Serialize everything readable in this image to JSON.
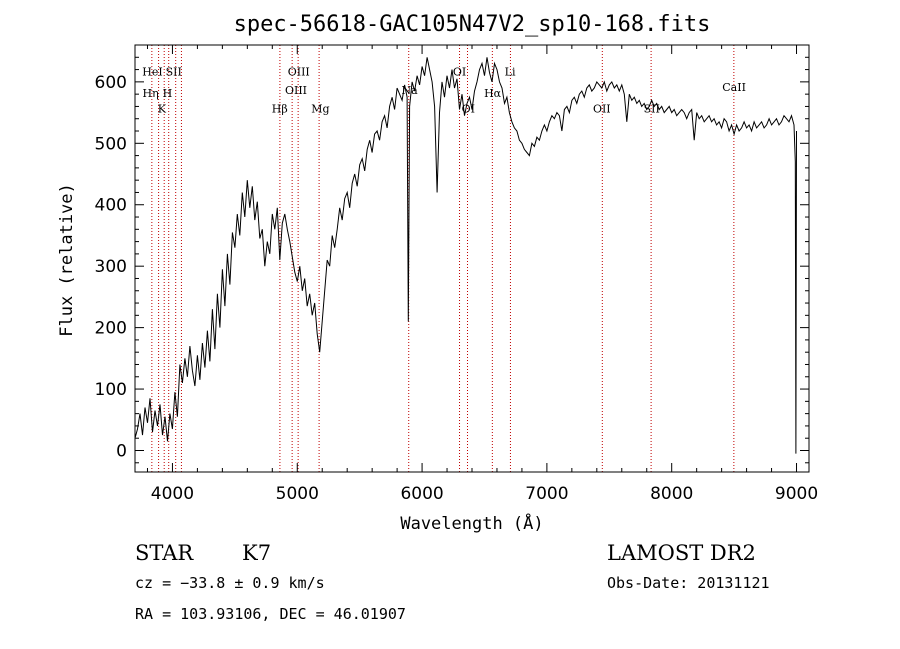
{
  "chart_data": {
    "type": "line",
    "title": "spec-56618-GAC105N47V2_sp10-168.fits",
    "xlabel": "Wavelength (Å)",
    "ylabel": "Flux (relative)",
    "xlim": [
      3700,
      9100
    ],
    "ylim": [
      -35,
      660
    ],
    "x_ticks": [
      4000,
      5000,
      6000,
      7000,
      8000,
      9000
    ],
    "y_ticks": [
      0,
      100,
      200,
      300,
      400,
      500,
      600
    ],
    "grid": false,
    "series": [
      {
        "points": [
          [
            3700,
            20
          ],
          [
            3720,
            35
          ],
          [
            3740,
            60
          ],
          [
            3760,
            25
          ],
          [
            3780,
            70
          ],
          [
            3800,
            45
          ],
          [
            3820,
            85
          ],
          [
            3840,
            30
          ],
          [
            3860,
            65
          ],
          [
            3880,
            40
          ],
          [
            3900,
            75
          ],
          [
            3920,
            25
          ],
          [
            3940,
            55
          ],
          [
            3960,
            15
          ],
          [
            3980,
            60
          ],
          [
            4000,
            35
          ],
          [
            4020,
            95
          ],
          [
            4040,
            55
          ],
          [
            4060,
            140
          ],
          [
            4080,
            110
          ],
          [
            4100,
            150
          ],
          [
            4120,
            120
          ],
          [
            4140,
            170
          ],
          [
            4160,
            130
          ],
          [
            4180,
            105
          ],
          [
            4200,
            155
          ],
          [
            4220,
            115
          ],
          [
            4240,
            175
          ],
          [
            4260,
            135
          ],
          [
            4280,
            195
          ],
          [
            4300,
            145
          ],
          [
            4320,
            230
          ],
          [
            4340,
            165
          ],
          [
            4360,
            255
          ],
          [
            4380,
            200
          ],
          [
            4400,
            295
          ],
          [
            4420,
            235
          ],
          [
            4440,
            320
          ],
          [
            4460,
            270
          ],
          [
            4480,
            355
          ],
          [
            4500,
            330
          ],
          [
            4520,
            385
          ],
          [
            4540,
            350
          ],
          [
            4560,
            420
          ],
          [
            4580,
            380
          ],
          [
            4600,
            440
          ],
          [
            4620,
            395
          ],
          [
            4640,
            430
          ],
          [
            4660,
            375
          ],
          [
            4680,
            405
          ],
          [
            4700,
            345
          ],
          [
            4720,
            360
          ],
          [
            4740,
            300
          ],
          [
            4760,
            340
          ],
          [
            4780,
            320
          ],
          [
            4800,
            385
          ],
          [
            4820,
            360
          ],
          [
            4840,
            395
          ],
          [
            4860,
            310
          ],
          [
            4880,
            370
          ],
          [
            4900,
            385
          ],
          [
            4920,
            360
          ],
          [
            4940,
            340
          ],
          [
            4960,
            315
          ],
          [
            4980,
            290
          ],
          [
            5000,
            275
          ],
          [
            5020,
            300
          ],
          [
            5040,
            260
          ],
          [
            5060,
            280
          ],
          [
            5080,
            235
          ],
          [
            5100,
            255
          ],
          [
            5120,
            220
          ],
          [
            5140,
            240
          ],
          [
            5160,
            190
          ],
          [
            5180,
            160
          ],
          [
            5200,
            210
          ],
          [
            5220,
            260
          ],
          [
            5240,
            310
          ],
          [
            5260,
            300
          ],
          [
            5280,
            350
          ],
          [
            5300,
            330
          ],
          [
            5320,
            360
          ],
          [
            5340,
            395
          ],
          [
            5360,
            375
          ],
          [
            5380,
            410
          ],
          [
            5400,
            420
          ],
          [
            5420,
            395
          ],
          [
            5440,
            435
          ],
          [
            5460,
            450
          ],
          [
            5480,
            430
          ],
          [
            5500,
            465
          ],
          [
            5520,
            475
          ],
          [
            5540,
            455
          ],
          [
            5560,
            490
          ],
          [
            5580,
            505
          ],
          [
            5600,
            485
          ],
          [
            5620,
            515
          ],
          [
            5640,
            520
          ],
          [
            5660,
            505
          ],
          [
            5680,
            535
          ],
          [
            5700,
            545
          ],
          [
            5720,
            525
          ],
          [
            5740,
            560
          ],
          [
            5760,
            575
          ],
          [
            5780,
            555
          ],
          [
            5800,
            590
          ],
          [
            5820,
            580
          ],
          [
            5840,
            570
          ],
          [
            5860,
            595
          ],
          [
            5880,
            575
          ],
          [
            5890,
            210
          ],
          [
            5900,
            560
          ],
          [
            5920,
            600
          ],
          [
            5940,
            585
          ],
          [
            5960,
            610
          ],
          [
            5980,
            595
          ],
          [
            6000,
            625
          ],
          [
            6020,
            610
          ],
          [
            6040,
            640
          ],
          [
            6060,
            620
          ],
          [
            6080,
            600
          ],
          [
            6100,
            560
          ],
          [
            6120,
            420
          ],
          [
            6140,
            550
          ],
          [
            6160,
            600
          ],
          [
            6180,
            575
          ],
          [
            6200,
            610
          ],
          [
            6220,
            590
          ],
          [
            6240,
            620
          ],
          [
            6260,
            590
          ],
          [
            6280,
            605
          ],
          [
            6300,
            555
          ],
          [
            6320,
            580
          ],
          [
            6340,
            545
          ],
          [
            6360,
            565
          ],
          [
            6380,
            575
          ],
          [
            6400,
            555
          ],
          [
            6420,
            585
          ],
          [
            6440,
            600
          ],
          [
            6460,
            620
          ],
          [
            6480,
            630
          ],
          [
            6500,
            610
          ],
          [
            6520,
            640
          ],
          [
            6540,
            615
          ],
          [
            6560,
            600
          ],
          [
            6580,
            630
          ],
          [
            6600,
            620
          ],
          [
            6620,
            600
          ],
          [
            6640,
            590
          ],
          [
            6660,
            565
          ],
          [
            6680,
            575
          ],
          [
            6700,
            550
          ],
          [
            6720,
            535
          ],
          [
            6740,
            525
          ],
          [
            6760,
            520
          ],
          [
            6780,
            505
          ],
          [
            6800,
            500
          ],
          [
            6820,
            490
          ],
          [
            6840,
            485
          ],
          [
            6860,
            480
          ],
          [
            6880,
            500
          ],
          [
            6900,
            495
          ],
          [
            6920,
            510
          ],
          [
            6940,
            505
          ],
          [
            6960,
            520
          ],
          [
            6980,
            530
          ],
          [
            7000,
            520
          ],
          [
            7020,
            535
          ],
          [
            7040,
            545
          ],
          [
            7060,
            540
          ],
          [
            7080,
            550
          ],
          [
            7100,
            545
          ],
          [
            7120,
            520
          ],
          [
            7140,
            555
          ],
          [
            7160,
            560
          ],
          [
            7180,
            550
          ],
          [
            7200,
            570
          ],
          [
            7220,
            575
          ],
          [
            7240,
            565
          ],
          [
            7260,
            580
          ],
          [
            7280,
            585
          ],
          [
            7300,
            575
          ],
          [
            7320,
            590
          ],
          [
            7340,
            595
          ],
          [
            7360,
            585
          ],
          [
            7380,
            590
          ],
          [
            7400,
            600
          ],
          [
            7420,
            595
          ],
          [
            7440,
            590
          ],
          [
            7460,
            600
          ],
          [
            7480,
            585
          ],
          [
            7500,
            595
          ],
          [
            7520,
            600
          ],
          [
            7540,
            590
          ],
          [
            7560,
            595
          ],
          [
            7580,
            585
          ],
          [
            7600,
            595
          ],
          [
            7620,
            580
          ],
          [
            7640,
            535
          ],
          [
            7660,
            580
          ],
          [
            7680,
            570
          ],
          [
            7700,
            575
          ],
          [
            7720,
            565
          ],
          [
            7740,
            570
          ],
          [
            7760,
            560
          ],
          [
            7780,
            565
          ],
          [
            7800,
            555
          ],
          [
            7820,
            560
          ],
          [
            7840,
            570
          ],
          [
            7860,
            560
          ],
          [
            7880,
            565
          ],
          [
            7900,
            555
          ],
          [
            7920,
            560
          ],
          [
            7940,
            550
          ],
          [
            7960,
            555
          ],
          [
            7980,
            560
          ],
          [
            8000,
            550
          ],
          [
            8020,
            555
          ],
          [
            8040,
            545
          ],
          [
            8060,
            550
          ],
          [
            8080,
            555
          ],
          [
            8100,
            550
          ],
          [
            8120,
            540
          ],
          [
            8140,
            550
          ],
          [
            8160,
            555
          ],
          [
            8180,
            505
          ],
          [
            8200,
            550
          ],
          [
            8220,
            540
          ],
          [
            8240,
            545
          ],
          [
            8260,
            535
          ],
          [
            8280,
            540
          ],
          [
            8300,
            545
          ],
          [
            8320,
            535
          ],
          [
            8340,
            540
          ],
          [
            8360,
            530
          ],
          [
            8380,
            535
          ],
          [
            8400,
            525
          ],
          [
            8420,
            540
          ],
          [
            8440,
            535
          ],
          [
            8460,
            520
          ],
          [
            8480,
            530
          ],
          [
            8500,
            515
          ],
          [
            8520,
            530
          ],
          [
            8540,
            520
          ],
          [
            8560,
            525
          ],
          [
            8580,
            535
          ],
          [
            8600,
            525
          ],
          [
            8620,
            530
          ],
          [
            8640,
            520
          ],
          [
            8660,
            535
          ],
          [
            8680,
            525
          ],
          [
            8700,
            530
          ],
          [
            8720,
            535
          ],
          [
            8740,
            525
          ],
          [
            8760,
            530
          ],
          [
            8780,
            540
          ],
          [
            8800,
            530
          ],
          [
            8820,
            535
          ],
          [
            8840,
            540
          ],
          [
            8860,
            530
          ],
          [
            8880,
            535
          ],
          [
            8900,
            545
          ],
          [
            8920,
            540
          ],
          [
            8940,
            535
          ],
          [
            8960,
            545
          ],
          [
            8980,
            530
          ],
          [
            8990,
            470
          ],
          [
            8995,
            -5
          ],
          [
            9000,
            520
          ]
        ]
      }
    ],
    "reference_lines": [
      {
        "x": 3835,
        "color": "#c00000"
      },
      {
        "x": 3889,
        "color": "#c00000"
      },
      {
        "x": 3934,
        "color": "#c00000"
      },
      {
        "x": 3970,
        "color": "#c00000"
      },
      {
        "x": 4026,
        "color": "#c00000"
      },
      {
        "x": 4072,
        "color": "#c00000"
      },
      {
        "x": 4861,
        "color": "#c00000"
      },
      {
        "x": 4959,
        "color": "#c00000"
      },
      {
        "x": 5007,
        "color": "#c00000"
      },
      {
        "x": 5175,
        "color": "#c00000"
      },
      {
        "x": 5893,
        "color": "#c00000"
      },
      {
        "x": 6300,
        "color": "#c00000"
      },
      {
        "x": 6364,
        "color": "#c00000"
      },
      {
        "x": 6563,
        "color": "#c00000"
      },
      {
        "x": 6708,
        "color": "#c00000"
      },
      {
        "x": 7444,
        "color": "#c00000"
      },
      {
        "x": 7835,
        "color": "#c00000"
      },
      {
        "x": 8498,
        "color": "#c00000"
      }
    ],
    "line_labels": [
      {
        "text": "HeI",
        "x": 3840,
        "y": 610
      },
      {
        "text": "SII",
        "x": 4010,
        "y": 610
      },
      {
        "text": "Hη",
        "x": 3825,
        "y": 575
      },
      {
        "text": "H",
        "x": 3960,
        "y": 575
      },
      {
        "text": "K",
        "x": 3915,
        "y": 550
      },
      {
        "text": "OIII",
        "x": 5012,
        "y": 610
      },
      {
        "text": "OIII",
        "x": 4990,
        "y": 580
      },
      {
        "text": "Hβ",
        "x": 4860,
        "y": 550
      },
      {
        "text": "Mg",
        "x": 5185,
        "y": 550
      },
      {
        "text": "Na",
        "x": 5900,
        "y": 580
      },
      {
        "text": "OI",
        "x": 6300,
        "y": 610
      },
      {
        "text": "OI",
        "x": 6370,
        "y": 550
      },
      {
        "text": "Hα",
        "x": 6565,
        "y": 575
      },
      {
        "text": "Li",
        "x": 6705,
        "y": 610
      },
      {
        "text": "OII",
        "x": 7440,
        "y": 550
      },
      {
        "text": "SII",
        "x": 7840,
        "y": 550
      },
      {
        "text": "CaII",
        "x": 8500,
        "y": 585
      }
    ]
  },
  "info": {
    "object_class": "STAR",
    "subclass": "K7",
    "survey": "LAMOST DR2",
    "redshift_line": "cz = −33.8 ± 0.9 km/s",
    "obs_date": "Obs-Date: 20131121",
    "coords": "RA = 103.93106, DEC =  46.01907"
  },
  "colors": {
    "spectrum": "#000000",
    "reference_line": "#c00000",
    "background": "#ffffff"
  }
}
